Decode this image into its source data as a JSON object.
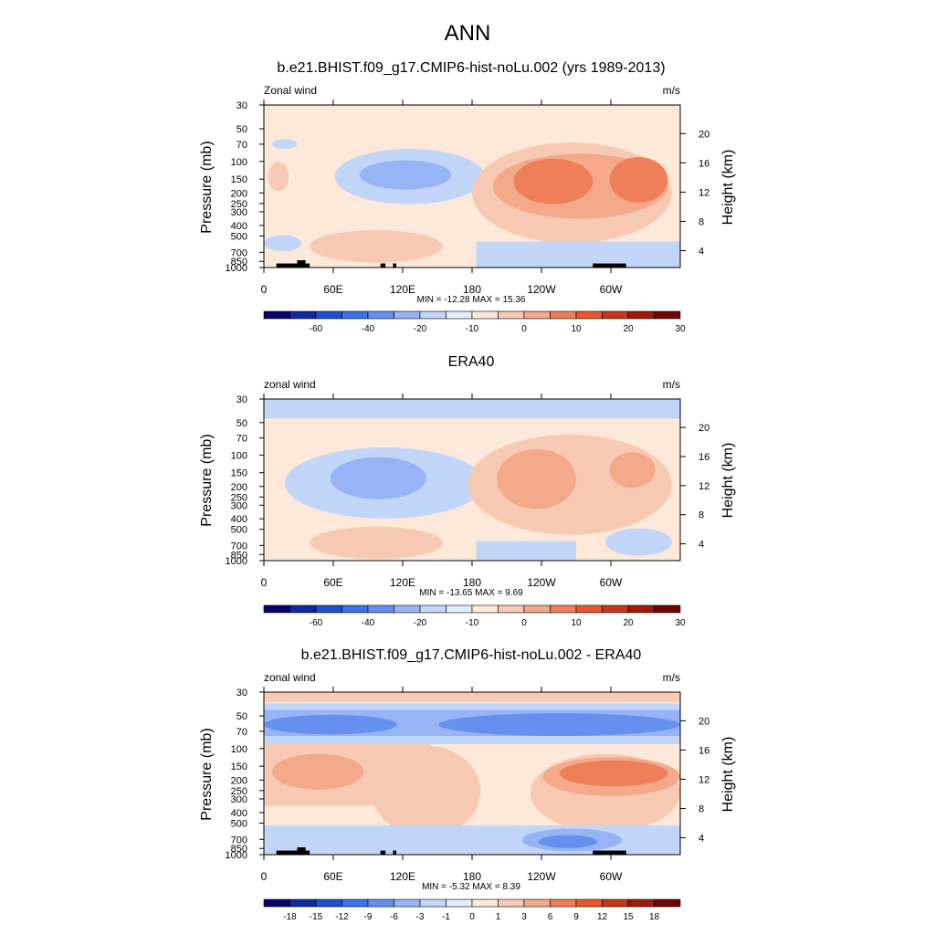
{
  "figure": {
    "title": "ANN"
  },
  "chart_data": [
    {
      "type": "heatmap",
      "title": "b.e21.BHIST.f09_g17.CMIP6-hist-noLu.002 (yrs 1989-2013)",
      "left_label": "Zonal wind",
      "right_label": "m/s",
      "ylabel": "Pressure (mb)",
      "y2label": "Height (km)",
      "x_ticks": [
        "0",
        "60E",
        "120E",
        "180",
        "120W",
        "60W"
      ],
      "y_ticks": [
        "30",
        "50",
        "70",
        "100",
        "150",
        "200",
        "250",
        "300",
        "400",
        "500",
        "700",
        "850",
        "1000"
      ],
      "y2_ticks": [
        "20",
        "16",
        "12",
        "8",
        "4"
      ],
      "stats": "MIN = -12.28  MAX =  15.36",
      "min": -12.28,
      "max": 15.36,
      "colorbar": {
        "labels": [
          "-60",
          "-40",
          "-20",
          "-10",
          "0",
          "10",
          "20",
          "30"
        ],
        "colors": [
          "#08036b",
          "#0e2a9e",
          "#1f4fce",
          "#3a74ea",
          "#6690f0",
          "#97b4f7",
          "#c2d6fa",
          "#e2ecfb",
          "#fde9d9",
          "#f8c9b3",
          "#f4a98a",
          "#ef7f58",
          "#e65730",
          "#c8361a",
          "#9e1a0b",
          "#6f0505"
        ]
      }
    },
    {
      "type": "heatmap",
      "title": "ERA40",
      "left_label": "zonal wind",
      "right_label": "m/s",
      "ylabel": "Pressure (mb)",
      "y2label": "Height (km)",
      "x_ticks": [
        "0",
        "60E",
        "120E",
        "180",
        "120W",
        "60W"
      ],
      "y_ticks": [
        "30",
        "50",
        "70",
        "100",
        "150",
        "200",
        "250",
        "300",
        "400",
        "500",
        "700",
        "850",
        "1000"
      ],
      "y2_ticks": [
        "20",
        "16",
        "12",
        "8",
        "4"
      ],
      "stats": "MIN = -13.65  MAX =   9.69",
      "min": -13.65,
      "max": 9.69,
      "colorbar": {
        "labels": [
          "-60",
          "-40",
          "-20",
          "-10",
          "0",
          "10",
          "20",
          "30"
        ],
        "colors": [
          "#08036b",
          "#0e2a9e",
          "#1f4fce",
          "#3a74ea",
          "#6690f0",
          "#97b4f7",
          "#c2d6fa",
          "#e2ecfb",
          "#fde9d9",
          "#f8c9b3",
          "#f4a98a",
          "#ef7f58",
          "#e65730",
          "#c8361a",
          "#9e1a0b",
          "#6f0505"
        ]
      }
    },
    {
      "type": "heatmap",
      "title": "b.e21.BHIST.f09_g17.CMIP6-hist-noLu.002 - ERA40",
      "left_label": "zonal wind",
      "right_label": "m/s",
      "ylabel": "Pressure (mb)",
      "y2label": "Height (km)",
      "x_ticks": [
        "0",
        "60E",
        "120E",
        "180",
        "120W",
        "60W"
      ],
      "y_ticks": [
        "30",
        "50",
        "70",
        "100",
        "150",
        "200",
        "250",
        "300",
        "400",
        "500",
        "700",
        "850",
        "1000"
      ],
      "y2_ticks": [
        "20",
        "16",
        "12",
        "8",
        "4"
      ],
      "stats": "MIN =  -5.32  MAX =   8.39",
      "min": -5.32,
      "max": 8.39,
      "colorbar": {
        "labels": [
          "-18",
          "-15",
          "-12",
          "-9",
          "-6",
          "-3",
          "-1",
          "0",
          "1",
          "3",
          "6",
          "9",
          "12",
          "15",
          "18"
        ],
        "colors": [
          "#08036b",
          "#0e2a9e",
          "#1f4fce",
          "#3a74ea",
          "#6690f0",
          "#97b4f7",
          "#c2d6fa",
          "#e2ecfb",
          "#fde9d9",
          "#f8c9b3",
          "#f4a98a",
          "#ef7f58",
          "#e65730",
          "#c8361a",
          "#9e1a0b",
          "#6f0505"
        ]
      }
    }
  ]
}
